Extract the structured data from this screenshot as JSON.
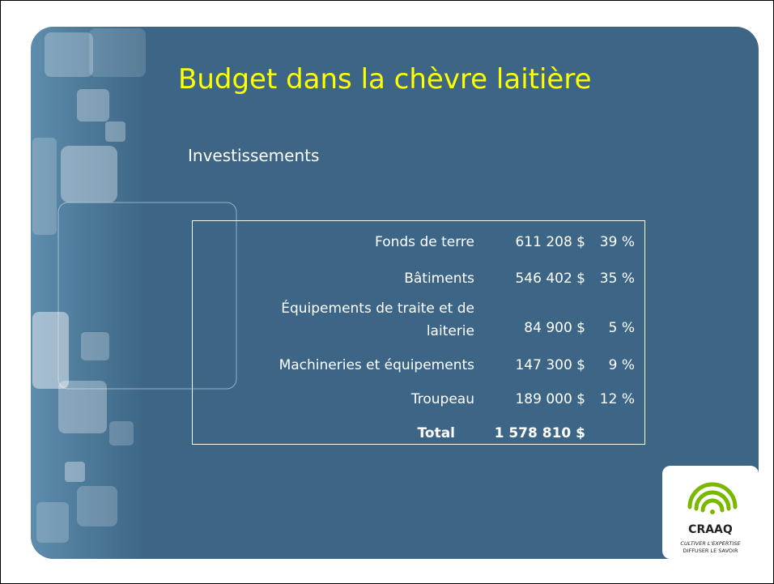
{
  "slide": {
    "title": "Budget dans la chèvre laitière",
    "subtitle": "Investissements",
    "table": {
      "rows": [
        {
          "label": "Fonds de terre",
          "amount": "611 208 $",
          "percent": "39 %"
        },
        {
          "label": "Bâtiments",
          "amount": "546 402 $",
          "percent": "35 %"
        },
        {
          "label": "Équipements de traite et de laiterie",
          "amount": "84 900 $",
          "percent": "5 %"
        },
        {
          "label": "Machineries et équipements",
          "amount": "147 300 $",
          "percent": "9 %"
        },
        {
          "label": "Troupeau",
          "amount": "189 000 $",
          "percent": "12 %"
        }
      ],
      "total": {
        "label": "Total",
        "amount": "1 578 810 $"
      }
    },
    "logo": {
      "name": "CRAAQ",
      "tagline": [
        "CULTIVER L'EXPERTISE",
        "DIFFUSER LE SAVOIR"
      ]
    }
  }
}
